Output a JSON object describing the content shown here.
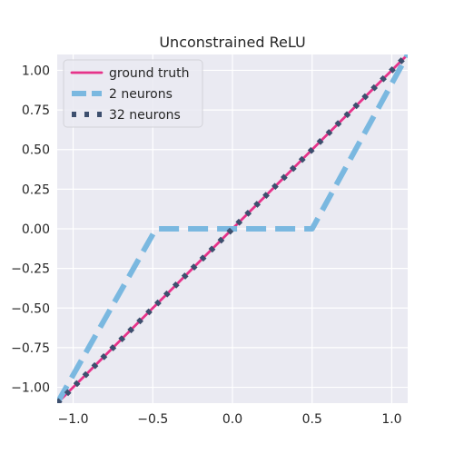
{
  "chart_data": {
    "type": "line",
    "title": "Unconstrained ReLU",
    "xlabel": "",
    "ylabel": "",
    "xlim": [
      -1.1,
      1.1
    ],
    "ylim": [
      -1.1,
      1.1
    ],
    "xticks": [
      -1.0,
      -0.5,
      0.0,
      0.5,
      1.0
    ],
    "xtick_labels": [
      "−1.0",
      "−0.5",
      "0.0",
      "0.5",
      "1.0"
    ],
    "yticks": [
      -1.0,
      -0.75,
      -0.5,
      -0.25,
      0.0,
      0.25,
      0.5,
      0.75,
      1.0
    ],
    "ytick_labels": [
      "−1.00",
      "−0.75",
      "−0.50",
      "−0.25",
      "0.00",
      "0.25",
      "0.50",
      "0.75",
      "1.00"
    ],
    "grid": true,
    "legend_position": "top-left",
    "colors": {
      "background": "#eaeaf2",
      "grid": "#ffffff"
    },
    "series": [
      {
        "name": "ground truth",
        "color": "#e6338a",
        "style": "solid",
        "x": [
          -1.1,
          -1.0,
          -0.9,
          -0.8,
          -0.7,
          -0.6,
          -0.5,
          -0.4,
          -0.3,
          -0.2,
          -0.1,
          0.0,
          0.1,
          0.2,
          0.3,
          0.4,
          0.5,
          0.6,
          0.7,
          0.8,
          0.9,
          1.0,
          1.1
        ],
        "y": [
          -1.1,
          -1.0,
          -0.9,
          -0.8,
          -0.7,
          -0.6,
          -0.5,
          -0.4,
          -0.3,
          -0.2,
          -0.1,
          0.0,
          0.1,
          0.2,
          0.3,
          0.4,
          0.5,
          0.6,
          0.7,
          0.8,
          0.9,
          1.0,
          1.1
        ]
      },
      {
        "name": "2 neurons",
        "color": "#7ab8e0",
        "style": "dashed",
        "x": [
          -1.1,
          -0.48,
          0.5,
          1.1
        ],
        "y": [
          -1.1,
          0.0,
          0.0,
          1.1
        ]
      },
      {
        "name": "32 neurons",
        "color": "#3d4f6e",
        "style": "dotted",
        "x": [
          -1.1,
          -1.0,
          -0.9,
          -0.8,
          -0.7,
          -0.6,
          -0.5,
          -0.4,
          -0.3,
          -0.2,
          -0.1,
          0.0,
          0.1,
          0.2,
          0.3,
          0.4,
          0.5,
          0.6,
          0.7,
          0.8,
          0.9,
          1.0,
          1.1
        ],
        "y": [
          -1.1,
          -1.0,
          -0.9,
          -0.8,
          -0.7,
          -0.6,
          -0.5,
          -0.4,
          -0.3,
          -0.2,
          -0.1,
          0.0,
          0.1,
          0.2,
          0.3,
          0.4,
          0.5,
          0.6,
          0.7,
          0.8,
          0.9,
          1.0,
          1.1
        ]
      }
    ]
  }
}
